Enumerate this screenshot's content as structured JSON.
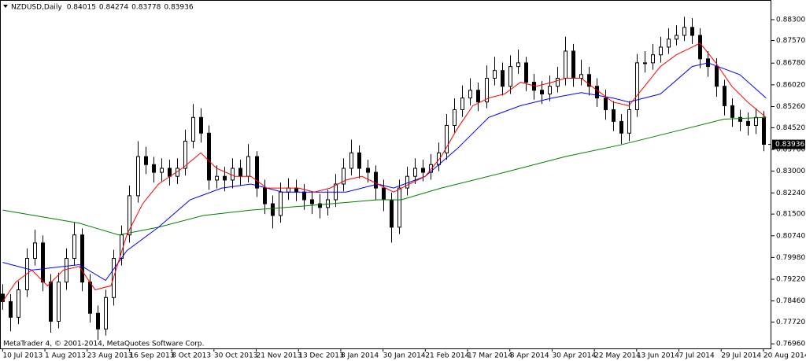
{
  "chart_data": {
    "type": "candlestick",
    "header": {
      "symbol": "NZDUSD,Daily",
      "ohlc": [
        0.84015,
        0.84274,
        0.83778,
        0.83936
      ]
    },
    "footer": "MetaTrader 4, © 2001-2014, MetaQuotes Software Corp.",
    "xlim": [
      -1,
      291
    ],
    "ylim": [
      0.768,
      0.8885
    ],
    "grid": false,
    "up_color": "#ffffff",
    "down_color": "#000000",
    "xticks": [
      {
        "value": 0,
        "label": "10 Jul 2013"
      },
      {
        "value": 16,
        "label": "1 Aug 2013"
      },
      {
        "value": 32,
        "label": "23 Aug 2013"
      },
      {
        "value": 48,
        "label": "16 Sep 2013"
      },
      {
        "value": 64,
        "label": "8 Oct 2013"
      },
      {
        "value": 80,
        "label": "30 Oct 2013"
      },
      {
        "value": 96,
        "label": "21 Nov 2013"
      },
      {
        "value": 112,
        "label": "13 Dec 2013"
      },
      {
        "value": 128,
        "label": "8 Jan 2014"
      },
      {
        "value": 144,
        "label": "30 Jan 2014"
      },
      {
        "value": 160,
        "label": "21 Feb 2014"
      },
      {
        "value": 176,
        "label": "17 Mar 2014"
      },
      {
        "value": 192,
        "label": "8 Apr 2014"
      },
      {
        "value": 208,
        "label": "30 Apr 2014"
      },
      {
        "value": 224,
        "label": "22 May 2014"
      },
      {
        "value": 240,
        "label": "13 Jun 2014"
      },
      {
        "value": 256,
        "label": "7 Jul 2014"
      },
      {
        "value": 272,
        "label": "29 Jul 2014"
      },
      {
        "value": 288,
        "label": "20 Aug 2014"
      }
    ],
    "yticks": [
      {
        "value": 0.883,
        "label": "0.88300"
      },
      {
        "value": 0.8757,
        "label": "0.87570"
      },
      {
        "value": 0.8678,
        "label": "0.86780"
      },
      {
        "value": 0.8602,
        "label": "0.86020"
      },
      {
        "value": 0.8526,
        "label": "0.85260"
      },
      {
        "value": 0.8452,
        "label": "0.84520"
      },
      {
        "value": 0.8376,
        "label": "0.83760"
      },
      {
        "value": 0.83,
        "label": "0.83000"
      },
      {
        "value": 0.8224,
        "label": "0.82240"
      },
      {
        "value": 0.815,
        "label": "0.81500"
      },
      {
        "value": 0.8074,
        "label": "0.80740"
      },
      {
        "value": 0.7998,
        "label": "0.79980"
      },
      {
        "value": 0.7922,
        "label": "0.79220"
      },
      {
        "value": 0.7846,
        "label": "0.78460"
      },
      {
        "value": 0.7772,
        "label": "0.77720"
      },
      {
        "value": 0.7696,
        "label": "0.76960"
      }
    ],
    "x": [
      0,
      3,
      6,
      9,
      12,
      15,
      18,
      21,
      24,
      27,
      30,
      33,
      36,
      39,
      42,
      45,
      48,
      51,
      54,
      57,
      60,
      63,
      66,
      69,
      72,
      75,
      78,
      81,
      84,
      87,
      90,
      93,
      96,
      99,
      102,
      105,
      108,
      111,
      114,
      117,
      120,
      123,
      126,
      129,
      132,
      135,
      138,
      141,
      144,
      147,
      150,
      153,
      156,
      159,
      162,
      165,
      168,
      171,
      174,
      177,
      180,
      183,
      186,
      189,
      192,
      195,
      198,
      201,
      204,
      207,
      210,
      213,
      216,
      219,
      222,
      225,
      228,
      231,
      234,
      237,
      240,
      243,
      246,
      249,
      252,
      255,
      258,
      261,
      264,
      267,
      270,
      273,
      276,
      279,
      282,
      285,
      288
    ],
    "ohlc": [
      [
        0.787,
        0.7905,
        0.7815,
        0.7844
      ],
      [
        0.7844,
        0.787,
        0.774,
        0.7789
      ],
      [
        0.7789,
        0.7915,
        0.7765,
        0.7885
      ],
      [
        0.7885,
        0.803,
        0.786,
        0.7995
      ],
      [
        0.7995,
        0.8095,
        0.797,
        0.8049
      ],
      [
        0.8049,
        0.8075,
        0.788,
        0.7912
      ],
      [
        0.7912,
        0.794,
        0.7735,
        0.7775
      ],
      [
        0.7775,
        0.7945,
        0.775,
        0.7912
      ],
      [
        0.7912,
        0.803,
        0.7885,
        0.7995
      ],
      [
        0.7995,
        0.812,
        0.797,
        0.8077
      ],
      [
        0.8077,
        0.81,
        0.788,
        0.7912
      ],
      [
        0.7912,
        0.794,
        0.777,
        0.7803
      ],
      [
        0.7803,
        0.783,
        0.771,
        0.7748
      ],
      [
        0.7748,
        0.7885,
        0.7725,
        0.7858
      ],
      [
        0.7858,
        0.8025,
        0.783,
        0.7995
      ],
      [
        0.7995,
        0.811,
        0.797,
        0.8077
      ],
      [
        0.8077,
        0.825,
        0.805,
        0.8214
      ],
      [
        0.8214,
        0.8405,
        0.819,
        0.8351
      ],
      [
        0.8351,
        0.8385,
        0.829,
        0.8323
      ],
      [
        0.8323,
        0.835,
        0.826,
        0.8296
      ],
      [
        0.8296,
        0.8345,
        0.8265,
        0.831
      ],
      [
        0.831,
        0.834,
        0.825,
        0.8282
      ],
      [
        0.8282,
        0.8345,
        0.8255,
        0.831
      ],
      [
        0.831,
        0.8445,
        0.8285,
        0.8405
      ],
      [
        0.8405,
        0.8535,
        0.838,
        0.8488
      ],
      [
        0.8488,
        0.852,
        0.84,
        0.8433
      ],
      [
        0.8433,
        0.846,
        0.8235,
        0.8269
      ],
      [
        0.8269,
        0.832,
        0.824,
        0.8282
      ],
      [
        0.8282,
        0.8315,
        0.823,
        0.8269
      ],
      [
        0.8269,
        0.8345,
        0.824,
        0.831
      ],
      [
        0.831,
        0.834,
        0.825,
        0.8282
      ],
      [
        0.8282,
        0.8395,
        0.826,
        0.8351
      ],
      [
        0.8351,
        0.837,
        0.821,
        0.8241
      ],
      [
        0.8241,
        0.827,
        0.815,
        0.8186
      ],
      [
        0.8186,
        0.8215,
        0.81,
        0.8145
      ],
      [
        0.8145,
        0.826,
        0.812,
        0.8227
      ],
      [
        0.8227,
        0.8275,
        0.82,
        0.8241
      ],
      [
        0.8241,
        0.827,
        0.8195,
        0.8227
      ],
      [
        0.8227,
        0.8255,
        0.8165,
        0.82
      ],
      [
        0.82,
        0.823,
        0.815,
        0.8186
      ],
      [
        0.8186,
        0.822,
        0.8135,
        0.8173
      ],
      [
        0.8173,
        0.8235,
        0.8145,
        0.82
      ],
      [
        0.82,
        0.829,
        0.8175,
        0.8255
      ],
      [
        0.8255,
        0.8345,
        0.823,
        0.831
      ],
      [
        0.831,
        0.841,
        0.8285,
        0.8364
      ],
      [
        0.8364,
        0.839,
        0.8275,
        0.831
      ],
      [
        0.831,
        0.834,
        0.826,
        0.8296
      ],
      [
        0.8296,
        0.832,
        0.82,
        0.8241
      ],
      [
        0.8241,
        0.827,
        0.816,
        0.82
      ],
      [
        0.82,
        0.8225,
        0.805,
        0.8104
      ],
      [
        0.8104,
        0.827,
        0.808,
        0.8241
      ],
      [
        0.8241,
        0.8315,
        0.8215,
        0.8282
      ],
      [
        0.8282,
        0.8345,
        0.8255,
        0.831
      ],
      [
        0.831,
        0.834,
        0.8265,
        0.8296
      ],
      [
        0.8296,
        0.836,
        0.827,
        0.8323
      ],
      [
        0.8323,
        0.84,
        0.83,
        0.8364
      ],
      [
        0.8364,
        0.85,
        0.834,
        0.846
      ],
      [
        0.846,
        0.8555,
        0.8435,
        0.8515
      ],
      [
        0.8515,
        0.86,
        0.849,
        0.8556
      ],
      [
        0.8556,
        0.8625,
        0.853,
        0.8583
      ],
      [
        0.8583,
        0.861,
        0.851,
        0.8542
      ],
      [
        0.8542,
        0.867,
        0.852,
        0.8625
      ],
      [
        0.8625,
        0.87,
        0.86,
        0.8652
      ],
      [
        0.8652,
        0.868,
        0.8565,
        0.8597
      ],
      [
        0.8597,
        0.8705,
        0.857,
        0.8666
      ],
      [
        0.8666,
        0.8725,
        0.864,
        0.8679
      ],
      [
        0.8679,
        0.87,
        0.858,
        0.8611
      ],
      [
        0.8611,
        0.864,
        0.855,
        0.8583
      ],
      [
        0.8583,
        0.8615,
        0.8535,
        0.857
      ],
      [
        0.857,
        0.8635,
        0.8545,
        0.8597
      ],
      [
        0.8597,
        0.8665,
        0.8575,
        0.8625
      ],
      [
        0.8625,
        0.877,
        0.86,
        0.872
      ],
      [
        0.872,
        0.8745,
        0.8595,
        0.8625
      ],
      [
        0.8625,
        0.869,
        0.86,
        0.8638
      ],
      [
        0.8638,
        0.8665,
        0.8565,
        0.8597
      ],
      [
        0.8597,
        0.8625,
        0.8525,
        0.8556
      ],
      [
        0.8556,
        0.8585,
        0.848,
        0.8515
      ],
      [
        0.8515,
        0.8545,
        0.844,
        0.8474
      ],
      [
        0.8474,
        0.85,
        0.8395,
        0.8433
      ],
      [
        0.8433,
        0.8545,
        0.8405,
        0.8515
      ],
      [
        0.8515,
        0.871,
        0.849,
        0.8679
      ],
      [
        0.8679,
        0.872,
        0.8645,
        0.8679
      ],
      [
        0.8679,
        0.8745,
        0.8655,
        0.8707
      ],
      [
        0.8707,
        0.877,
        0.868,
        0.8734
      ],
      [
        0.8734,
        0.88,
        0.871,
        0.8762
      ],
      [
        0.8762,
        0.881,
        0.874,
        0.8775
      ],
      [
        0.8775,
        0.884,
        0.8755,
        0.8803
      ],
      [
        0.8803,
        0.8835,
        0.8745,
        0.8775
      ],
      [
        0.8775,
        0.88,
        0.866,
        0.8693
      ],
      [
        0.8693,
        0.872,
        0.863,
        0.8666
      ],
      [
        0.8666,
        0.8695,
        0.856,
        0.8597
      ],
      [
        0.8597,
        0.862,
        0.8495,
        0.8529
      ],
      [
        0.8529,
        0.8555,
        0.8455,
        0.8488
      ],
      [
        0.8488,
        0.8515,
        0.844,
        0.8474
      ],
      [
        0.8474,
        0.8505,
        0.8425,
        0.846
      ],
      [
        0.846,
        0.852,
        0.843,
        0.8488
      ],
      [
        0.8488,
        0.851,
        0.837,
        0.8394
      ]
    ],
    "lines": [
      {
        "color": "#008000",
        "x": [
          0,
          29,
          44,
          59,
          76,
          94,
          118,
          142,
          151,
          166,
          190,
          213,
          234,
          258,
          273,
          289
        ],
        "values": [
          0.8164,
          0.8118,
          0.8077,
          0.8104,
          0.8145,
          0.8164,
          0.8181,
          0.82,
          0.82,
          0.8241,
          0.8296,
          0.8351,
          0.8392,
          0.8447,
          0.8482,
          0.8488
        ]
      },
      {
        "color": "#0000ff",
        "x": [
          0,
          11,
          29,
          39,
          47,
          59,
          71,
          83,
          94,
          106,
          118,
          130,
          142,
          148,
          160,
          172,
          184,
          196,
          208,
          219,
          231,
          237,
          249,
          261,
          267,
          279,
          289
        ],
        "values": [
          0.7981,
          0.7954,
          0.7973,
          0.7918,
          0.8022,
          0.8104,
          0.82,
          0.8241,
          0.8255,
          0.8227,
          0.8227,
          0.8227,
          0.8255,
          0.8241,
          0.8282,
          0.8378,
          0.8488,
          0.8529,
          0.8556,
          0.8575,
          0.8556,
          0.8542,
          0.857,
          0.8666,
          0.8679,
          0.8638,
          0.8556
        ]
      },
      {
        "color": "#ff0000",
        "x": [
          0,
          5,
          11,
          17,
          23,
          29,
          35,
          41,
          47,
          53,
          59,
          68,
          75,
          81,
          88,
          94,
          100,
          106,
          112,
          118,
          124,
          130,
          136,
          142,
          148,
          154,
          160,
          166,
          172,
          178,
          184,
          190,
          196,
          202,
          208,
          213,
          219,
          225,
          231,
          237,
          243,
          249,
          255,
          261,
          264,
          270,
          276,
          282,
          289
        ],
        "values": [
          0.7844,
          0.7912,
          0.7954,
          0.7899,
          0.7954,
          0.7967,
          0.7885,
          0.7899,
          0.8077,
          0.8186,
          0.8255,
          0.831,
          0.8364,
          0.831,
          0.8282,
          0.8282,
          0.8241,
          0.8241,
          0.8241,
          0.8227,
          0.8241,
          0.8269,
          0.8282,
          0.8255,
          0.8227,
          0.8255,
          0.8282,
          0.8351,
          0.8447,
          0.8529,
          0.8556,
          0.857,
          0.8611,
          0.8597,
          0.8611,
          0.8625,
          0.8625,
          0.8583,
          0.8542,
          0.8529,
          0.8597,
          0.8666,
          0.8707,
          0.8734,
          0.8748,
          0.8679,
          0.8597,
          0.8542,
          0.8488
        ]
      }
    ]
  }
}
